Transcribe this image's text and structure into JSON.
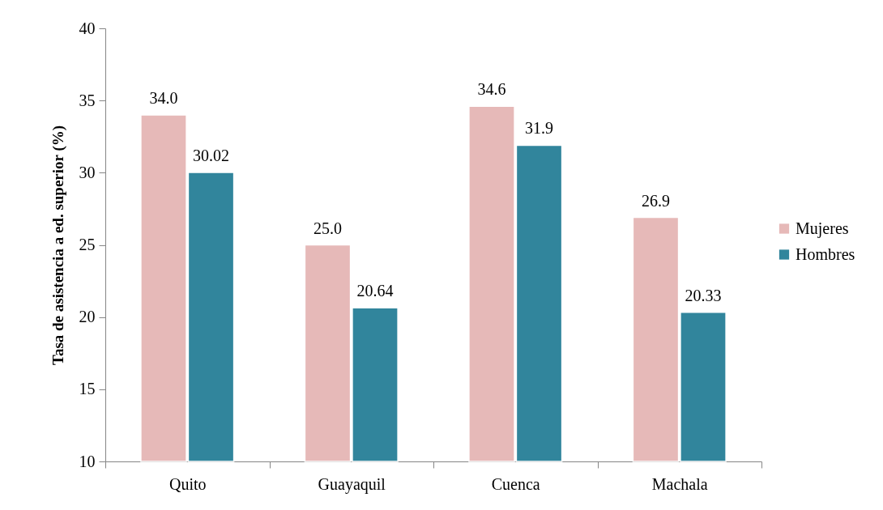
{
  "chart_data": {
    "type": "bar",
    "ylabel": "Tasa de asistencia a ed. superior (%)",
    "categories": [
      "Quito",
      "Guayaquil",
      "Cuenca",
      "Machala"
    ],
    "series": [
      {
        "name": "Mujeres",
        "color": "#e6b9b8",
        "values": [
          34.0,
          25.0,
          34.6,
          26.9
        ],
        "value_labels": [
          "34.0",
          "25.0",
          "34.6",
          "26.9"
        ]
      },
      {
        "name": "Hombres",
        "color": "#31859c",
        "values": [
          30.02,
          20.64,
          31.9,
          20.33
        ],
        "value_labels": [
          "30.02",
          "20.64",
          "31.9",
          "20.33"
        ]
      }
    ],
    "ylim": [
      10,
      40
    ],
    "yticks": [
      10,
      15,
      20,
      25,
      30,
      35,
      40
    ],
    "grid": false,
    "legend": "right"
  }
}
